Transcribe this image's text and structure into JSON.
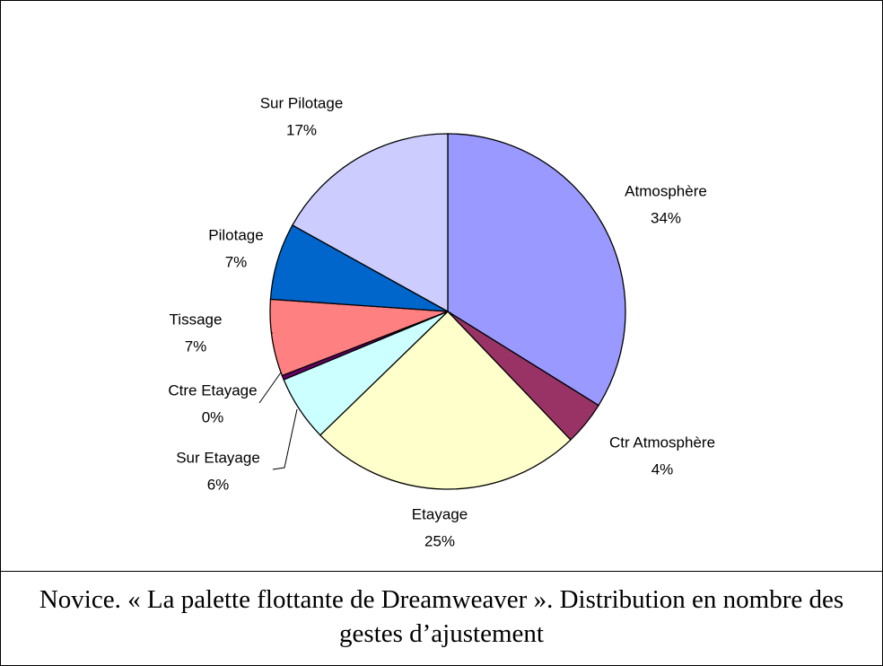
{
  "chart_data": {
    "type": "pie",
    "caption": "Novice. « La palette flottante de Dreamweaver ». Distribution en nombre des gestes d’ajustement",
    "categories": [
      "Atmosphère",
      "Ctr Atmosphère",
      "Etayage",
      "Sur Etayage",
      "Ctre Etayage",
      "Tissage",
      "Pilotage",
      "Sur Pilotage"
    ],
    "values": [
      34,
      4,
      25,
      6,
      0.4,
      7,
      7,
      17
    ],
    "value_labels": [
      "34%",
      "4%",
      "25%",
      "6%",
      "0%",
      "7%",
      "7%",
      "17%"
    ],
    "colors": [
      "#9999ff",
      "#993366",
      "#ffffcc",
      "#ccffff",
      "#660066",
      "#ff8080",
      "#0066cc",
      "#ccccff"
    ]
  }
}
